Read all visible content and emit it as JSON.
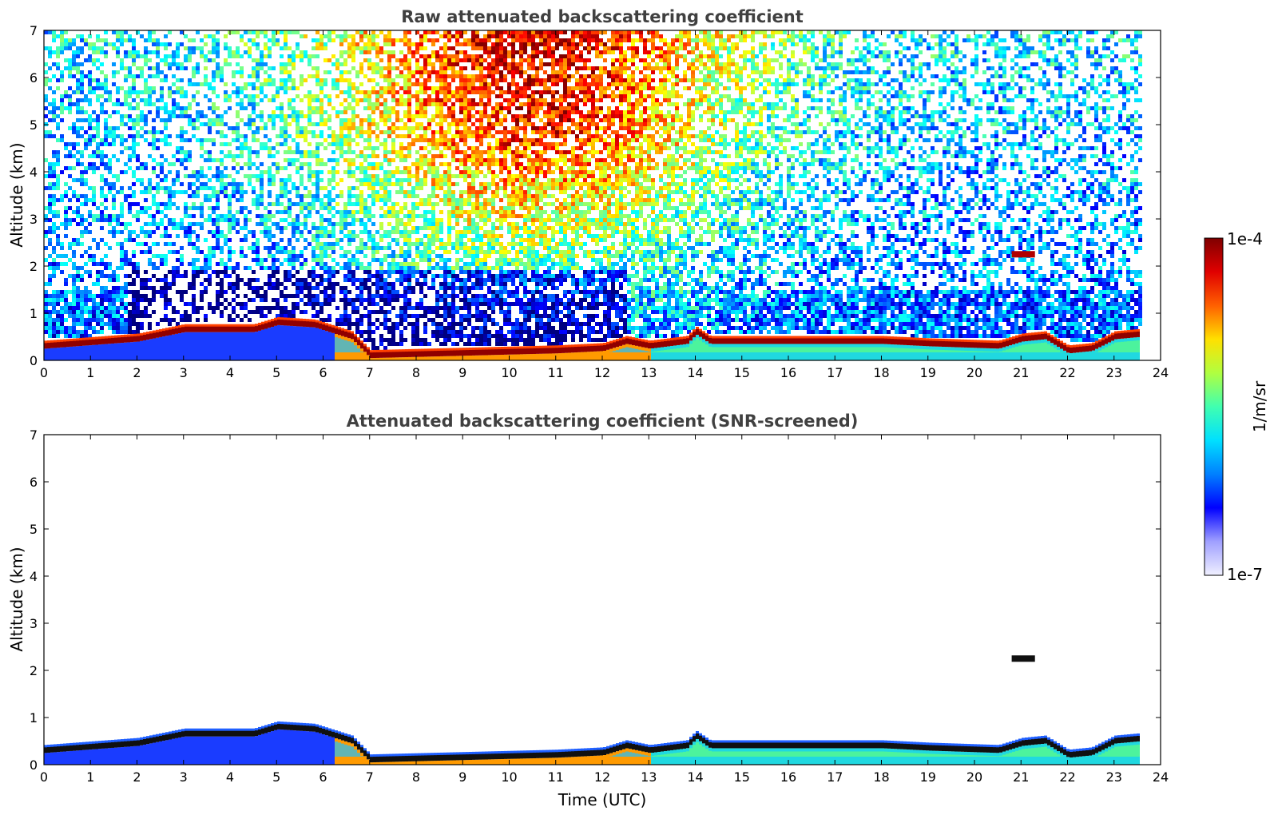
{
  "chart_data": [
    {
      "type": "heatmap",
      "title": "Raw attenuated backscattering coefficient",
      "ylabel": "Altitude (km)",
      "xlabel": "",
      "xlim": [
        0,
        24
      ],
      "ylim": [
        0,
        7
      ],
      "x_ticks": [
        "0",
        "1",
        "2",
        "3",
        "4",
        "5",
        "6",
        "7",
        "8",
        "9",
        "10",
        "11",
        "12",
        "13",
        "14",
        "15",
        "16",
        "17",
        "18",
        "19",
        "20",
        "21",
        "22",
        "23",
        "24"
      ],
      "y_ticks": [
        "0",
        "1",
        "2",
        "3",
        "4",
        "5",
        "6",
        "7"
      ],
      "data_end_hour": 23.55,
      "features": {
        "boundary_layer_top_km": [
          [
            0,
            0.35
          ],
          [
            2,
            0.5
          ],
          [
            3,
            0.7
          ],
          [
            4.5,
            0.7
          ],
          [
            5,
            0.85
          ],
          [
            5.8,
            0.8
          ],
          [
            6.6,
            0.55
          ],
          [
            7,
            0.15
          ],
          [
            9,
            0.2
          ],
          [
            11,
            0.25
          ],
          [
            12,
            0.3
          ],
          [
            12.5,
            0.45
          ],
          [
            13,
            0.35
          ],
          [
            13.8,
            0.45
          ],
          [
            14,
            0.65
          ],
          [
            14.3,
            0.45
          ],
          [
            16,
            0.45
          ],
          [
            18,
            0.45
          ],
          [
            19,
            0.4
          ],
          [
            20.5,
            0.35
          ],
          [
            21,
            0.5
          ],
          [
            21.5,
            0.55
          ],
          [
            22,
            0.25
          ],
          [
            22.5,
            0.3
          ],
          [
            23,
            0.55
          ],
          [
            23.55,
            0.6
          ]
        ],
        "elevated_cloud": {
          "start_hour": 20.8,
          "end_hour": 21.3,
          "altitude_km": 2.25
        }
      }
    },
    {
      "type": "heatmap",
      "title": "Attenuated backscattering coefficient (SNR-screened)",
      "ylabel": "Altitude (km)",
      "xlabel": "Time (UTC)",
      "xlim": [
        0,
        24
      ],
      "ylim": [
        0,
        7
      ],
      "x_ticks": [
        "0",
        "1",
        "2",
        "3",
        "4",
        "5",
        "6",
        "7",
        "8",
        "9",
        "10",
        "11",
        "12",
        "13",
        "14",
        "15",
        "16",
        "17",
        "18",
        "19",
        "20",
        "21",
        "22",
        "23",
        "24"
      ],
      "y_ticks": [
        "0",
        "1",
        "2",
        "3",
        "4",
        "5",
        "6",
        "7"
      ],
      "data_end_hour": 23.55
    }
  ],
  "colorbar": {
    "label": "1/m/sr",
    "max_label": "1e-4",
    "min_label": "1e-7",
    "colormap": "jet",
    "colors": [
      "#f0f0ff",
      "#a0a0ff",
      "#0000ff",
      "#0080ff",
      "#00e0ff",
      "#40ffb0",
      "#b0ff40",
      "#ffe000",
      "#ff6000",
      "#e00000",
      "#800000"
    ]
  }
}
